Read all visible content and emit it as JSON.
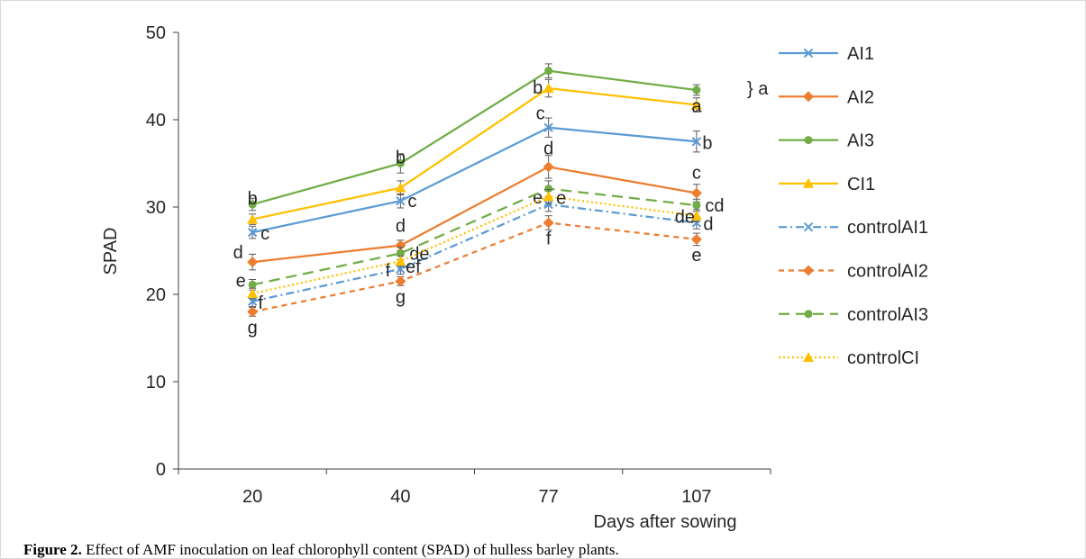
{
  "chart_data": {
    "type": "line",
    "xlabel": "Days after sowing",
    "ylabel": "SPAD",
    "ylim": [
      0,
      50
    ],
    "yticks": [
      0,
      10,
      20,
      30,
      40,
      50
    ],
    "categories": [
      "20",
      "40",
      "77",
      "107"
    ],
    "grid": false,
    "legend_position": "right",
    "series": [
      {
        "name": "AI1",
        "color": "#5B9BD5",
        "marker": "x",
        "dash": "solid",
        "values": [
          27.1,
          30.7,
          39.1,
          37.5
        ],
        "errors": [
          0.7,
          0.8,
          1.1,
          1.2
        ],
        "letters": [
          "c",
          "c",
          "c",
          "b"
        ]
      },
      {
        "name": "AI2",
        "color": "#ED7D31",
        "marker": "diamond",
        "dash": "solid",
        "values": [
          23.7,
          25.6,
          34.6,
          31.6
        ],
        "errors": [
          0.9,
          0.6,
          1.3,
          1.0
        ],
        "letters": [
          "d",
          "d",
          "d",
          "c"
        ]
      },
      {
        "name": "AI3",
        "color": "#70AD47",
        "marker": "circle",
        "dash": "solid",
        "values": [
          30.3,
          35.0,
          45.6,
          43.4
        ],
        "errors": [
          0.7,
          1.1,
          0.8,
          0.6
        ],
        "letters": [
          "b",
          "b",
          "",
          "} a"
        ]
      },
      {
        "name": "CI1",
        "color": "#FFC000",
        "marker": "triangle",
        "dash": "solid",
        "values": [
          28.6,
          32.2,
          43.6,
          41.7
        ],
        "errors": [
          0.6,
          0.8,
          1.0,
          0.8
        ],
        "letters": [
          "",
          "",
          "b",
          "a"
        ]
      },
      {
        "name": "controlAI1",
        "color": "#5B9BD5",
        "marker": "x",
        "dash": "dashdot",
        "values": [
          19.2,
          22.9,
          30.3,
          28.2
        ],
        "errors": [
          0.6,
          0.6,
          0.8,
          0.7
        ],
        "letters": [
          "",
          "f",
          "e",
          "d"
        ]
      },
      {
        "name": "controlAI2",
        "color": "#ED7D31",
        "marker": "diamond",
        "dash": "dash",
        "values": [
          18.0,
          21.5,
          28.2,
          26.3
        ],
        "errors": [
          0.5,
          0.5,
          0.8,
          0.7
        ],
        "letters": [
          "g",
          "g",
          "f",
          "e"
        ]
      },
      {
        "name": "controlAI3",
        "color": "#70AD47",
        "marker": "circle",
        "dash": "longdash",
        "values": [
          21.1,
          24.7,
          32.1,
          30.2
        ],
        "errors": [
          0.6,
          0.7,
          0.9,
          0.7
        ],
        "letters": [
          "e",
          "de",
          "",
          "cd"
        ]
      },
      {
        "name": "controlCI",
        "color": "#FFC000",
        "marker": "triangle",
        "dash": "dot",
        "values": [
          20.1,
          23.8,
          31.2,
          29.0
        ],
        "errors": [
          0.6,
          0.6,
          0.8,
          0.7
        ],
        "letters": [
          "f",
          "ef",
          "e",
          "de"
        ]
      }
    ]
  },
  "caption": {
    "label": "Figure 2.",
    "text": " Effect of AMF inoculation on leaf chlorophyll content (SPAD) of hulless barley plants."
  }
}
